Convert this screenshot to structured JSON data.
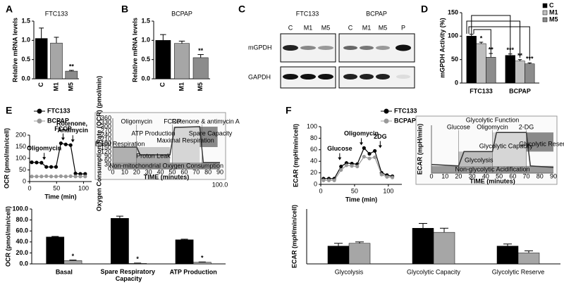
{
  "panel_labels": [
    "A",
    "B",
    "C",
    "D",
    "E",
    "F"
  ],
  "floating_label": "100.0",
  "blot": {
    "cell_lines": [
      "FTC133",
      "BCPAP"
    ],
    "lanes": [
      "C",
      "M1",
      "M5",
      "C",
      "M1",
      "M5",
      "P"
    ],
    "proteins": [
      "mGPDH",
      "GAPDH"
    ]
  },
  "insets": [
    {
      "ylabel": "Oxygen Consumption Rate (OCR) (pmol/min)",
      "xlabel": "TIME (minutes)",
      "xticks": [
        0,
        10,
        20,
        30,
        40,
        50,
        60,
        70,
        80,
        90
      ],
      "yticks": [
        0,
        30,
        60,
        90,
        120,
        150,
        180,
        210,
        240,
        270,
        300,
        330,
        360
      ],
      "labels": [
        "Oligomycin",
        "FCCP",
        "Rotenone & antimycin A",
        "Basal Respiration",
        "ATP Production",
        "Proton Leak",
        "Maximal Respiration",
        "Spare Capacity",
        "Non-mitochondrial Oxygen Consumption"
      ]
    },
    {
      "ylabel": "ECAR (mpH/min)",
      "xlabel": "TIME (minutes)",
      "xticks": [
        0,
        10,
        20,
        30,
        40,
        50,
        60,
        70,
        80,
        90
      ],
      "labels": [
        "Glycolytic Function",
        "Glucose",
        "Oligomycin",
        "2-DG",
        "Glycolytic Capacity",
        "Glycolysis",
        "Glycolytic Reserve",
        "Non-glycolytic Acidification"
      ]
    }
  ],
  "chart_data": [
    {
      "type": "bar",
      "title": "FTC133",
      "ylabel": "Relative mRNA levels",
      "categories": [
        "C",
        "M1",
        "M5"
      ],
      "values": [
        1.05,
        0.93,
        0.2
      ],
      "errors": [
        0.27,
        0.15,
        0.02
      ],
      "significance": [
        null,
        null,
        "**"
      ],
      "colors": [
        "#000000",
        "#a6a6a6",
        "#8c8c8c"
      ],
      "ylim": [
        0,
        1.5
      ],
      "yticks": [
        {
          "value": 0,
          "label": "0.0"
        },
        {
          "value": 0.5,
          "label": "0.5"
        },
        {
          "value": 1,
          "label": "1.0"
        },
        {
          "value": 1.5,
          "label": "1.5"
        }
      ]
    },
    {
      "type": "bar",
      "title": "BCPAP",
      "ylabel": "Relative mRNA levels",
      "categories": [
        "C",
        "M1",
        "M5"
      ],
      "values": [
        1.0,
        0.92,
        0.55
      ],
      "errors": [
        0.15,
        0.06,
        0.08
      ],
      "significance": [
        null,
        null,
        "**"
      ],
      "colors": [
        "#000000",
        "#a6a6a6",
        "#8c8c8c"
      ],
      "ylim": [
        0,
        1.5
      ],
      "yticks": [
        {
          "value": 0,
          "label": "0.0"
        },
        {
          "value": 0.5,
          "label": "0.5"
        },
        {
          "value": 1,
          "label": "1.0"
        },
        {
          "value": 1.5,
          "label": "1.5"
        }
      ]
    },
    {
      "type": "bar",
      "ylabel": "mGPDH Activity (%)",
      "categories": [
        "FTC133",
        "BCPAP"
      ],
      "series": [
        {
          "name": "C",
          "color": "#000000",
          "values": [
            100,
            59
          ],
          "errors": [
            4,
            3
          ],
          "significance": [
            null,
            "***"
          ]
        },
        {
          "name": "M1",
          "color": "#bfbfbf",
          "values": [
            84,
            47
          ],
          "errors": [
            3,
            3
          ],
          "significance": [
            "*",
            "**"
          ]
        },
        {
          "name": "M5",
          "color": "#8c8c8c",
          "values": [
            55,
            41
          ],
          "errors": [
            8,
            2
          ],
          "significance": [
            "**",
            "***"
          ]
        }
      ],
      "ylim": [
        0,
        150
      ],
      "yticks": [
        0,
        50,
        100,
        150
      ]
    },
    {
      "type": "line",
      "ylabel": "OCR (pmol/min/cell)",
      "xlabel": "Time (min)",
      "x": [
        4,
        13,
        22,
        31,
        40,
        49,
        58,
        67,
        76,
        85,
        94,
        103
      ],
      "series": [
        {
          "name": "FTC133",
          "color": "#000000",
          "values": [
            83,
            82,
            81,
            63,
            63,
            63,
            165,
            160,
            157,
            35,
            33,
            33
          ]
        },
        {
          "name": "BCPAP",
          "color": "#999999",
          "values": [
            22,
            22,
            22,
            23,
            22,
            22,
            23,
            22,
            23,
            22,
            22,
            22
          ]
        }
      ],
      "annotations": [
        {
          "text": "Oligomycin",
          "x": 27
        },
        {
          "text": "FCCP",
          "x": 62
        },
        {
          "text": "Rotenone, Antimycin",
          "x": 80
        }
      ],
      "xlim": [
        0,
        115
      ],
      "xticks": [
        0,
        50,
        100
      ],
      "ylim": [
        0,
        200
      ],
      "yticks": [
        0,
        50,
        100,
        150,
        200
      ]
    },
    {
      "type": "bar",
      "ylabel": "OCR (pmol/min/cell)",
      "categories": [
        "Basal",
        "Spare Respiratory Capacity",
        "ATP Production"
      ],
      "series": [
        {
          "color": "#000000",
          "values": [
            49,
            83,
            44
          ],
          "errors": [
            1,
            4,
            1
          ]
        },
        {
          "color": "#a6a6a6",
          "values": [
            6,
            1,
            3
          ],
          "errors": [
            1,
            0.5,
            0.5
          ],
          "significance": [
            "*",
            "*",
            "*"
          ]
        }
      ],
      "ylim": [
        0,
        100
      ],
      "yticks": [
        {
          "value": 0,
          "label": "0.0"
        },
        {
          "value": 20,
          "label": "20.0"
        },
        {
          "value": 40,
          "label": "40.0"
        },
        {
          "value": 60,
          "label": "60.0"
        },
        {
          "value": 80,
          "label": "80.0"
        },
        {
          "value": 100,
          "label": "100.0"
        }
      ]
    },
    {
      "type": "line",
      "ylabel": "ECAR (mpH/min/cell)",
      "xlabel": "Time (min)",
      "x": [
        4,
        12,
        20,
        30,
        38,
        46,
        54,
        64,
        72,
        80,
        90,
        98,
        106
      ],
      "series": [
        {
          "name": "FTC133",
          "color": "#000000",
          "values": [
            10,
            10,
            10,
            31,
            37,
            36,
            35,
            63,
            53,
            58,
            20,
            16,
            14
          ]
        },
        {
          "name": "BCPAP",
          "color": "#999999",
          "values": [
            7,
            7,
            7,
            25,
            33,
            32,
            31,
            48,
            45,
            47,
            17,
            13,
            12
          ]
        }
      ],
      "annotations": [
        {
          "text": "Glucose",
          "x": 28
        },
        {
          "text": "Oligomycin",
          "x": 60
        },
        {
          "text": "2DG",
          "x": 88
        }
      ],
      "xlim": [
        0,
        120
      ],
      "xticks": [
        0,
        50,
        100
      ],
      "ylim": [
        0,
        100
      ],
      "yticks": [
        0,
        20,
        40,
        60,
        80,
        100
      ]
    },
    {
      "type": "bar",
      "ylabel": "ECAR (mpH/min/cell)",
      "categories": [
        "Glycolysis",
        "Glycolytic Capacity",
        "Glycolytic Reserve"
      ],
      "series": [
        {
          "color": "#000000",
          "values": [
            26,
            52,
            26
          ],
          "errors": [
            4,
            7,
            3
          ]
        },
        {
          "color": "#a6a6a6",
          "values": [
            30,
            46,
            16
          ],
          "errors": [
            2,
            6,
            3
          ]
        }
      ],
      "ylim": [
        0,
        80
      ]
    }
  ]
}
